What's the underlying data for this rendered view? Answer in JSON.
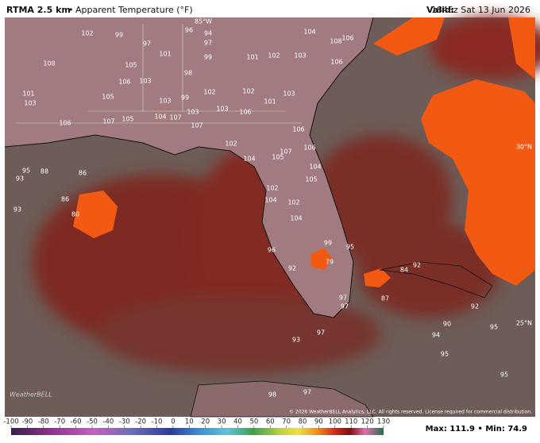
{
  "header": {
    "title": "RTMA 2.5 km",
    "subtitle": "Apparent Temperature (°F)",
    "valid_label": "Valid:",
    "valid_time": "1845z Sat 13 Jun 2026"
  },
  "map": {
    "latitude_labels": [
      "30°N",
      "25°N"
    ],
    "longitude_labels": [
      "85°W"
    ],
    "labels": [
      102,
      99,
      97,
      96,
      94,
      97,
      99,
      101,
      108,
      105,
      98,
      101,
      102,
      103,
      104,
      108,
      106,
      106,
      106,
      103,
      103,
      102,
      99,
      105,
      101,
      103,
      106,
      107,
      105,
      104,
      107,
      103,
      103,
      106,
      102,
      103,
      101,
      107,
      102,
      106,
      106,
      104,
      105,
      107,
      104,
      105,
      102,
      104,
      102,
      104,
      86,
      88,
      95,
      93,
      93,
      86,
      80,
      99,
      95,
      96,
      79,
      92,
      97,
      97,
      84,
      92,
      87,
      92,
      90,
      95,
      94,
      95,
      95,
      93,
      97,
      98,
      97
    ],
    "logo": "WeatherBELL",
    "copyright": "© 2026 WeatherBELL Analytics, LLC. All rights reserved. License required for commercial distribution."
  },
  "colorbar": {
    "ticks": [
      -100,
      -90,
      -80,
      -70,
      -60,
      -50,
      -40,
      -30,
      -20,
      -10,
      0,
      10,
      20,
      30,
      40,
      50,
      60,
      70,
      80,
      90,
      100,
      110,
      120,
      130
    ]
  },
  "footer": {
    "max_label": "Max:",
    "max": 111.9,
    "min_label": "Min:",
    "min": 74.9
  }
}
